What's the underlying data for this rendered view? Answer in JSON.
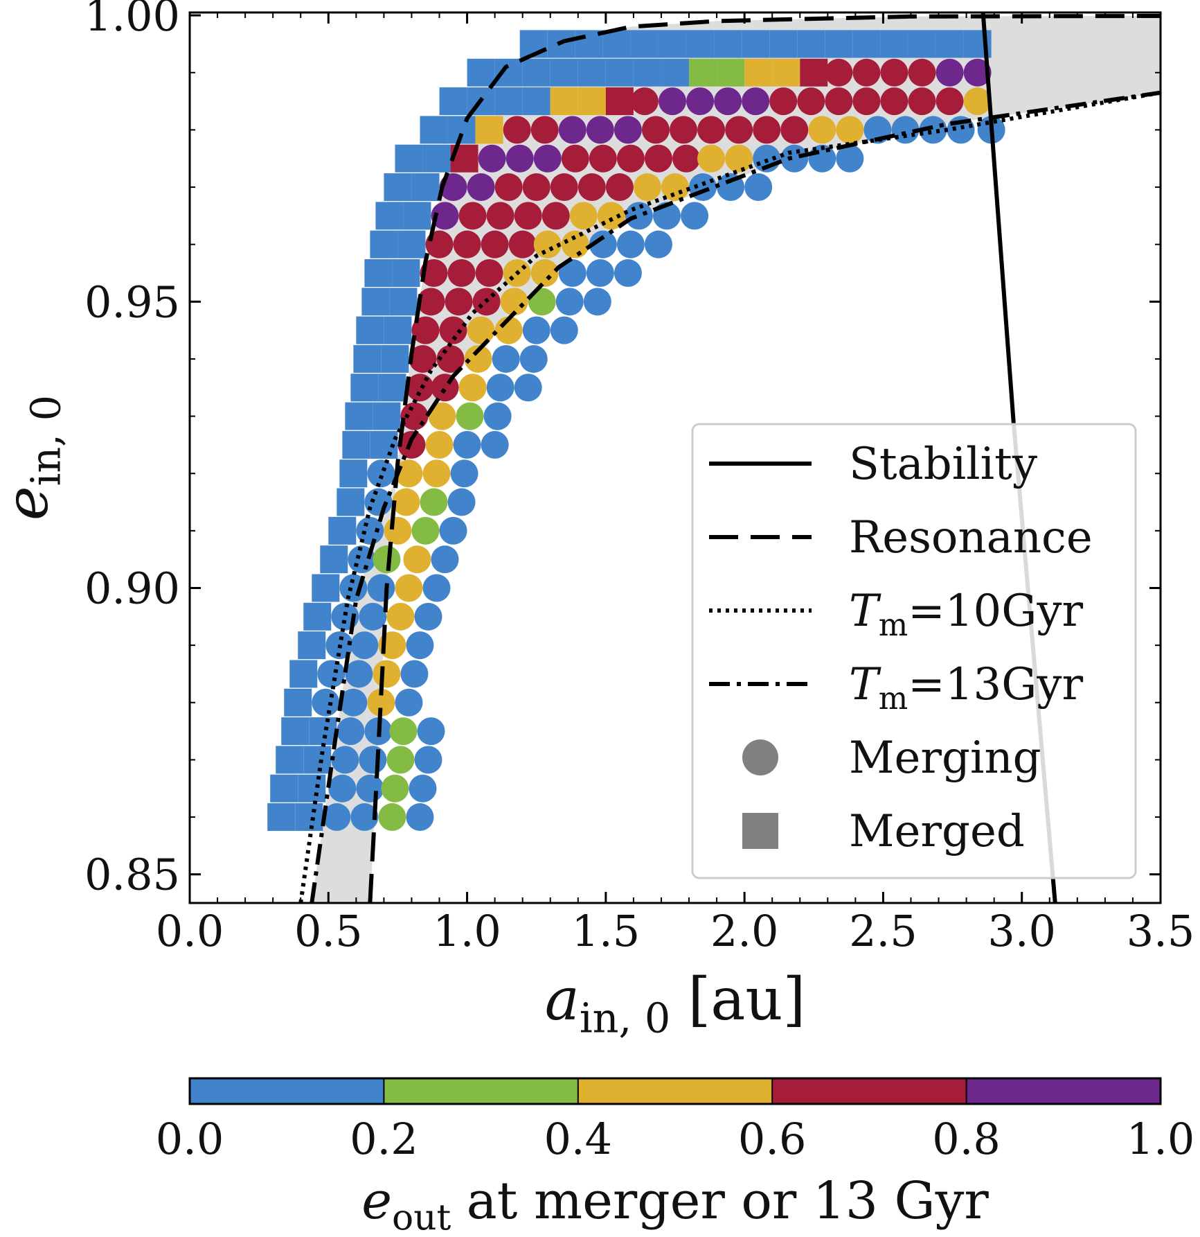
{
  "chart_data": {
    "type": "scatter",
    "xlabel": {
      "symbol": "a",
      "sub": "in, 0",
      "text": "[au]"
    },
    "ylabel": {
      "symbol": "e",
      "sub": "in, 0"
    },
    "xlim": [
      0,
      3.5
    ],
    "ylim": [
      0.845,
      1.0005
    ],
    "xticks": [
      {
        "value": 0,
        "label": "0.0"
      },
      0.5,
      {
        "value": 1,
        "label": "1.0"
      },
      1.5,
      {
        "value": 2,
        "label": "2.0"
      },
      2.5,
      {
        "value": 3,
        "label": "3.0"
      },
      3.5
    ],
    "yticks": [
      0.85,
      {
        "value": 0.9,
        "label": "0.90"
      },
      0.95,
      {
        "value": 1,
        "label": "1.00"
      }
    ],
    "xminorticks": [
      0.1,
      0.2,
      0.3,
      0.4,
      0.6,
      0.7,
      0.8,
      0.9,
      1.1,
      1.2,
      1.3,
      1.4,
      1.6,
      1.7,
      1.8,
      1.9,
      2.1,
      2.2,
      2.3,
      2.4,
      2.6,
      2.7,
      2.8,
      2.9,
      3.1,
      3.2,
      3.3,
      3.4
    ],
    "yminorticks": [
      0.86,
      0.87,
      0.88,
      0.89,
      0.91,
      0.92,
      0.93,
      0.94,
      0.96,
      0.97,
      0.98,
      0.99
    ],
    "legend": "lower right",
    "shade": {
      "between": [
        1,
        3
      ],
      "color": "#d4d4d4"
    },
    "colorbar": {
      "label": {
        "symbol": "e",
        "sub": "out",
        "text": "at merger or 13 Gyr"
      },
      "lim": [
        0,
        1
      ],
      "ticks": [
        {
          "value": 0,
          "label": "0.0"
        },
        0.2,
        0.4,
        0.6,
        0.8,
        {
          "value": 1,
          "label": "1.0"
        }
      ],
      "colors": [
        "#4284cc",
        "#84bb44",
        "#e0b030",
        "#a61d3a",
        "#6e278c"
      ]
    },
    "series": [
      {
        "name": "Stability",
        "style": "solid",
        "color": "#000000",
        "x": [
          2.86,
          2.97,
          3.12
        ],
        "values": [
          1.0005,
          0.929,
          0.845
        ]
      },
      {
        "name": "Resonance",
        "style": "dashed",
        "color": "#000000",
        "x": [
          0.65,
          0.68,
          0.71,
          0.75,
          0.8,
          0.85,
          0.91,
          1.0,
          1.14,
          1.35,
          1.59,
          1.9,
          2.16,
          2.6,
          3.5
        ],
        "values": [
          0.845,
          0.872,
          0.9,
          0.922,
          0.941,
          0.957,
          0.97,
          0.982,
          0.991,
          0.9955,
          0.998,
          0.999,
          0.9993,
          0.9998,
          0.9999
        ]
      },
      {
        "name": {
          "symbol": "T",
          "sub": "m",
          "text": "=10Gyr"
        },
        "style": "dotted",
        "color": "#000000",
        "x": [
          0.4,
          0.48,
          0.57,
          0.65,
          0.74,
          0.87,
          1.02,
          1.25,
          1.59,
          2.16,
          2.73,
          3.5
        ],
        "values": [
          0.845,
          0.872,
          0.898,
          0.914,
          0.926,
          0.938,
          0.948,
          0.958,
          0.966,
          0.976,
          0.98,
          0.9865
        ]
      },
      {
        "name": {
          "symbol": "T",
          "sub": "m",
          "text": "=13Gyr"
        },
        "style": "dashdot",
        "color": "#000000",
        "x": [
          0.44,
          0.52,
          0.6,
          0.7,
          0.8,
          0.95,
          1.11,
          1.33,
          1.59,
          2.16,
          2.73,
          3.5
        ],
        "values": [
          0.845,
          0.872,
          0.898,
          0.914,
          0.926,
          0.937,
          0.945,
          0.956,
          0.9645,
          0.975,
          0.981,
          0.9865
        ]
      },
      {
        "name": "Merging",
        "marker": "circle",
        "color": "#808080",
        "x": [
          0.53,
          0.63,
          0.73,
          0.83,
          0.55,
          0.65,
          0.74,
          0.84,
          0.56,
          0.66,
          0.76,
          0.86,
          0.58,
          0.68,
          0.77,
          0.87,
          0.49,
          0.59,
          0.69,
          0.79,
          0.51,
          0.61,
          0.71,
          0.81,
          0.54,
          0.63,
          0.73,
          0.83,
          0.56,
          0.66,
          0.76,
          0.86,
          0.59,
          0.69,
          0.79,
          0.89,
          0.62,
          0.71,
          0.82,
          0.92,
          0.65,
          0.75,
          0.85,
          0.95,
          0.68,
          0.78,
          0.88,
          0.98,
          0.69,
          0.79,
          0.89,
          0.99,
          0.8,
          0.9,
          1.0,
          1.1,
          0.81,
          0.91,
          1.01,
          1.11,
          0.83,
          0.92,
          1.02,
          1.12,
          1.22,
          0.84,
          0.94,
          1.04,
          1.14,
          1.24,
          0.85,
          0.95,
          1.05,
          1.15,
          1.25,
          1.35,
          0.87,
          0.97,
          1.07,
          1.17,
          1.27,
          1.37,
          1.47,
          0.88,
          0.98,
          1.08,
          1.18,
          1.28,
          1.38,
          1.48,
          1.58,
          0.9,
          1.0,
          1.1,
          1.2,
          1.29,
          1.39,
          1.49,
          1.59,
          1.69,
          0.92,
          1.02,
          1.12,
          1.22,
          1.32,
          1.42,
          1.52,
          1.62,
          1.72,
          1.82,
          0.95,
          1.05,
          1.15,
          1.25,
          1.35,
          1.45,
          1.55,
          1.65,
          1.75,
          1.85,
          1.95,
          2.05,
          1.09,
          1.19,
          1.29,
          1.39,
          1.49,
          1.59,
          1.69,
          1.79,
          1.88,
          1.98,
          2.08,
          2.18,
          2.28,
          2.38,
          1.18,
          1.28,
          1.38,
          1.48,
          1.58,
          1.68,
          1.78,
          1.88,
          1.98,
          2.08,
          2.18,
          2.28,
          2.38,
          2.48,
          2.58,
          2.68,
          2.78,
          2.89,
          1.64,
          1.74,
          1.84,
          1.94,
          2.04,
          2.14,
          2.24,
          2.34,
          2.44,
          2.54,
          2.64,
          2.74,
          2.84,
          2.34,
          2.44,
          2.54,
          2.64,
          2.74,
          2.84
        ],
        "values": [
          0.86,
          0.86,
          0.86,
          0.86,
          0.865,
          0.865,
          0.865,
          0.865,
          0.87,
          0.87,
          0.87,
          0.87,
          0.875,
          0.875,
          0.875,
          0.875,
          0.88,
          0.88,
          0.88,
          0.88,
          0.885,
          0.885,
          0.885,
          0.885,
          0.89,
          0.89,
          0.89,
          0.89,
          0.895,
          0.895,
          0.895,
          0.895,
          0.9,
          0.9,
          0.9,
          0.9,
          0.905,
          0.905,
          0.905,
          0.905,
          0.91,
          0.91,
          0.91,
          0.91,
          0.915,
          0.915,
          0.915,
          0.915,
          0.92,
          0.92,
          0.92,
          0.92,
          0.925,
          0.925,
          0.925,
          0.925,
          0.93,
          0.93,
          0.93,
          0.93,
          0.935,
          0.935,
          0.935,
          0.935,
          0.935,
          0.94,
          0.94,
          0.94,
          0.94,
          0.94,
          0.945,
          0.945,
          0.945,
          0.945,
          0.945,
          0.945,
          0.95,
          0.95,
          0.95,
          0.95,
          0.95,
          0.95,
          0.95,
          0.955,
          0.955,
          0.955,
          0.955,
          0.955,
          0.955,
          0.955,
          0.955,
          0.96,
          0.96,
          0.96,
          0.96,
          0.96,
          0.96,
          0.96,
          0.96,
          0.96,
          0.965,
          0.965,
          0.965,
          0.965,
          0.965,
          0.965,
          0.965,
          0.965,
          0.965,
          0.965,
          0.97,
          0.97,
          0.97,
          0.97,
          0.97,
          0.97,
          0.97,
          0.97,
          0.97,
          0.97,
          0.97,
          0.97,
          0.975,
          0.975,
          0.975,
          0.975,
          0.975,
          0.975,
          0.975,
          0.975,
          0.975,
          0.975,
          0.975,
          0.975,
          0.975,
          0.975,
          0.98,
          0.98,
          0.98,
          0.98,
          0.98,
          0.98,
          0.98,
          0.98,
          0.98,
          0.98,
          0.98,
          0.98,
          0.98,
          0.98,
          0.98,
          0.98,
          0.98,
          0.98,
          0.985,
          0.985,
          0.985,
          0.985,
          0.985,
          0.985,
          0.985,
          0.985,
          0.985,
          0.985,
          0.985,
          0.985,
          0.985,
          0.99,
          0.99,
          0.99,
          0.99,
          0.99,
          0.99
        ],
        "eout": [
          0.1,
          0.1,
          0.3,
          0.1,
          0.1,
          0.1,
          0.3,
          0.1,
          0.1,
          0.1,
          0.3,
          0.1,
          0.1,
          0.1,
          0.3,
          0.1,
          0.1,
          0.1,
          0.5,
          0.1,
          0.1,
          0.1,
          0.5,
          0.1,
          0.1,
          0.1,
          0.5,
          0.1,
          0.1,
          0.1,
          0.5,
          0.1,
          0.1,
          0.1,
          0.5,
          0.1,
          0.1,
          0.3,
          0.5,
          0.1,
          0.1,
          0.5,
          0.3,
          0.1,
          0.1,
          0.5,
          0.3,
          0.1,
          0.1,
          0.5,
          0.5,
          0.1,
          0.7,
          0.5,
          0.1,
          0.1,
          0.7,
          0.5,
          0.3,
          0.1,
          0.7,
          0.7,
          0.5,
          0.1,
          0.1,
          0.7,
          0.7,
          0.5,
          0.1,
          0.1,
          0.7,
          0.7,
          0.5,
          0.5,
          0.1,
          0.1,
          0.7,
          0.7,
          0.7,
          0.5,
          0.3,
          0.1,
          0.1,
          0.7,
          0.7,
          0.7,
          0.5,
          0.5,
          0.1,
          0.1,
          0.1,
          0.7,
          0.7,
          0.7,
          0.7,
          0.5,
          0.5,
          0.1,
          0.1,
          0.1,
          0.9,
          0.7,
          0.7,
          0.7,
          0.7,
          0.5,
          0.5,
          0.1,
          0.1,
          0.1,
          0.9,
          0.9,
          0.7,
          0.7,
          0.7,
          0.7,
          0.7,
          0.5,
          0.5,
          0.1,
          0.1,
          0.1,
          0.9,
          0.9,
          0.9,
          0.7,
          0.7,
          0.7,
          0.7,
          0.7,
          0.5,
          0.5,
          0.1,
          0.1,
          0.1,
          0.1,
          0.7,
          0.7,
          0.9,
          0.9,
          0.9,
          0.7,
          0.7,
          0.7,
          0.7,
          0.7,
          0.7,
          0.5,
          0.5,
          0.1,
          0.1,
          0.1,
          0.1,
          0.1,
          0.7,
          0.9,
          0.9,
          0.9,
          0.9,
          0.7,
          0.7,
          0.7,
          0.7,
          0.7,
          0.7,
          0.7,
          0.5,
          0.7,
          0.7,
          0.7,
          0.7,
          0.9,
          0.9
        ]
      },
      {
        "name": "Merged",
        "marker": "square",
        "color": "#808080",
        "x": [
          0.33,
          0.43,
          0.34,
          0.44,
          0.36,
          0.46,
          0.38,
          0.48,
          0.39,
          0.41,
          0.44,
          0.46,
          0.49,
          0.52,
          0.55,
          0.58,
          0.59,
          0.6,
          0.7,
          0.61,
          0.71,
          0.63,
          0.73,
          0.64,
          0.74,
          0.65,
          0.75,
          0.67,
          0.77,
          0.68,
          0.78,
          0.7,
          0.8,
          0.72,
          0.82,
          0.75,
          0.85,
          0.79,
          0.89,
          0.99,
          0.88,
          0.98,
          1.08,
          0.95,
          1.05,
          1.15,
          1.25,
          1.35,
          1.45,
          1.55,
          1.05,
          1.15,
          1.25,
          1.35,
          1.45,
          1.55,
          1.65,
          1.75,
          1.85,
          1.95,
          2.05,
          2.15,
          2.25,
          1.24,
          1.34,
          1.44,
          1.54,
          1.64,
          1.74,
          1.84,
          1.94,
          2.04,
          2.14,
          2.24,
          2.34,
          2.44,
          2.54,
          2.64,
          2.74,
          2.84
        ],
        "values": [
          0.86,
          0.86,
          0.865,
          0.865,
          0.87,
          0.87,
          0.875,
          0.875,
          0.88,
          0.885,
          0.89,
          0.895,
          0.9,
          0.905,
          0.91,
          0.915,
          0.92,
          0.925,
          0.925,
          0.93,
          0.93,
          0.935,
          0.935,
          0.94,
          0.94,
          0.945,
          0.945,
          0.95,
          0.95,
          0.955,
          0.955,
          0.96,
          0.96,
          0.965,
          0.965,
          0.97,
          0.97,
          0.975,
          0.975,
          0.975,
          0.98,
          0.98,
          0.98,
          0.985,
          0.985,
          0.985,
          0.985,
          0.985,
          0.985,
          0.985,
          0.99,
          0.99,
          0.99,
          0.99,
          0.99,
          0.99,
          0.99,
          0.99,
          0.99,
          0.99,
          0.99,
          0.99,
          0.99,
          0.995,
          0.995,
          0.995,
          0.995,
          0.995,
          0.995,
          0.995,
          0.995,
          0.995,
          0.995,
          0.995,
          0.995,
          0.995,
          0.995,
          0.995,
          0.995,
          0.995
        ],
        "eout": [
          0.1,
          0.1,
          0.1,
          0.1,
          0.1,
          0.1,
          0.1,
          0.1,
          0.1,
          0.1,
          0.1,
          0.1,
          0.1,
          0.1,
          0.1,
          0.1,
          0.1,
          0.1,
          0.1,
          0.1,
          0.1,
          0.1,
          0.1,
          0.1,
          0.1,
          0.1,
          0.1,
          0.1,
          0.1,
          0.1,
          0.1,
          0.1,
          0.1,
          0.1,
          0.1,
          0.1,
          0.1,
          0.1,
          0.1,
          0.7,
          0.1,
          0.1,
          0.5,
          0.1,
          0.1,
          0.1,
          0.1,
          0.5,
          0.5,
          0.7,
          0.1,
          0.1,
          0.1,
          0.1,
          0.1,
          0.1,
          0.1,
          0.1,
          0.3,
          0.3,
          0.5,
          0.5,
          0.7,
          0.1,
          0.1,
          0.1,
          0.1,
          0.1,
          0.1,
          0.1,
          0.1,
          0.1,
          0.1,
          0.1,
          0.1,
          0.1,
          0.1,
          0.1,
          0.1,
          0.1
        ]
      }
    ]
  }
}
